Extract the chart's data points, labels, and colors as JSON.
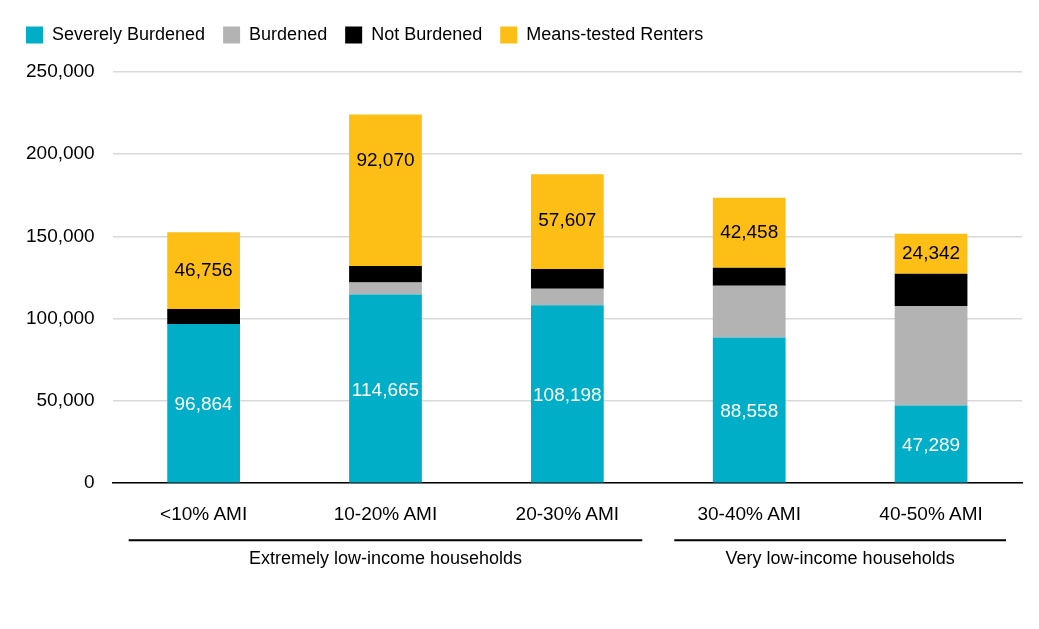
{
  "chart_data": {
    "type": "bar",
    "stacked": true,
    "categories": [
      "<10% AMI",
      "10-20% AMI",
      "20-30% AMI",
      "30-40% AMI",
      "40-50% AMI"
    ],
    "series": [
      {
        "name": "Severely Burdened",
        "color": "#00aec7",
        "values": [
          96864,
          114665,
          108198,
          88558,
          47289
        ],
        "value_labels": [
          "96,864",
          "114,665",
          "108,198",
          "88,558",
          "47,289"
        ]
      },
      {
        "name": "Burdened",
        "color": "#b3b3b3",
        "values": [
          0,
          7400,
          10000,
          31500,
          60500
        ]
      },
      {
        "name": "Not Burdened",
        "color": "#000000",
        "values": [
          9000,
          10000,
          12000,
          11000,
          19500
        ]
      },
      {
        "name": "Means-tested Renters",
        "color": "#fdbf16",
        "values": [
          46756,
          92070,
          57607,
          42458,
          24342
        ],
        "value_labels": [
          "46,756",
          "92,070",
          "57,607",
          "42,458",
          "24,342"
        ]
      }
    ],
    "ylim": [
      0,
      250000
    ],
    "yticks": [
      {
        "value": 0,
        "label": "0"
      },
      {
        "value": 50000,
        "label": "50,000"
      },
      {
        "value": 100000,
        "label": "100,000"
      },
      {
        "value": 150000,
        "label": "150,000"
      },
      {
        "value": 200000,
        "label": "200,000"
      },
      {
        "value": 250000,
        "label": "250,000"
      }
    ],
    "grid": "y",
    "legend": "top left",
    "annotations": [
      "Extremely low-income households",
      "Very low-income households"
    ]
  }
}
